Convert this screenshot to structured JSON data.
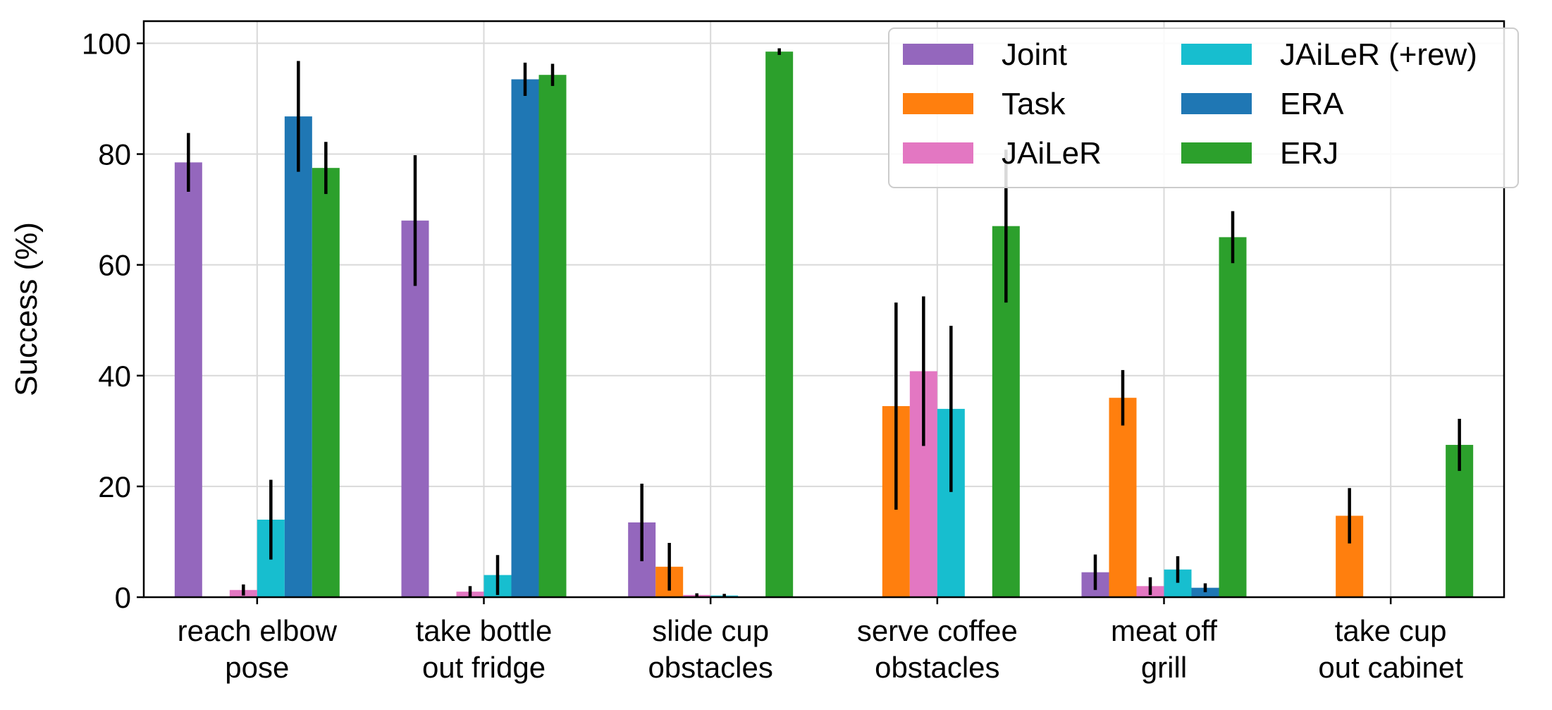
{
  "chart_data": {
    "type": "bar",
    "title": "",
    "xlabel": "",
    "ylabel": "Success (%)",
    "ylim": [
      0,
      104
    ],
    "yticks": [
      0,
      20,
      40,
      60,
      80,
      100
    ],
    "grid": true,
    "legend_position": "top-right",
    "categories": [
      [
        "reach elbow",
        "pose"
      ],
      [
        "take bottle",
        "out fridge"
      ],
      [
        "slide cup",
        "obstacles"
      ],
      [
        "serve coffee",
        "obstacles"
      ],
      [
        "meat off",
        "grill"
      ],
      [
        "take cup",
        "out cabinet"
      ]
    ],
    "series": [
      {
        "name": "Joint",
        "color": "#9467bd",
        "values": [
          78.5,
          68,
          13.5,
          0,
          4.5,
          0
        ],
        "errors": [
          5.3,
          11.8,
          7,
          0,
          3.2,
          0
        ]
      },
      {
        "name": "Task",
        "color": "#ff7f0e",
        "values": [
          0,
          0,
          5.5,
          34.5,
          36,
          14.7
        ],
        "errors": [
          0,
          0,
          4.3,
          18.7,
          5,
          5
        ]
      },
      {
        "name": "JAiLeR",
        "color": "#e377c2",
        "values": [
          1.3,
          1.0,
          0.4,
          40.8,
          2.0,
          0
        ],
        "errors": [
          1,
          1,
          0.3,
          13.5,
          1.6,
          0
        ]
      },
      {
        "name": "JAiLeR (+rew)",
        "color": "#17becf",
        "values": [
          14,
          4,
          0.3,
          34,
          5,
          0
        ],
        "errors": [
          7.2,
          3.6,
          0.3,
          15,
          2.4,
          0
        ]
      },
      {
        "name": "ERA",
        "color": "#1f77b4",
        "values": [
          86.8,
          93.5,
          0,
          0,
          1.7,
          0
        ],
        "errors": [
          10,
          3,
          0,
          0,
          0.8,
          0
        ]
      },
      {
        "name": "ERJ",
        "color": "#2ca02c",
        "values": [
          77.5,
          94.3,
          98.5,
          67,
          65,
          27.5
        ],
        "errors": [
          4.7,
          2,
          0.6,
          13.8,
          4.7,
          4.7
        ]
      }
    ]
  }
}
